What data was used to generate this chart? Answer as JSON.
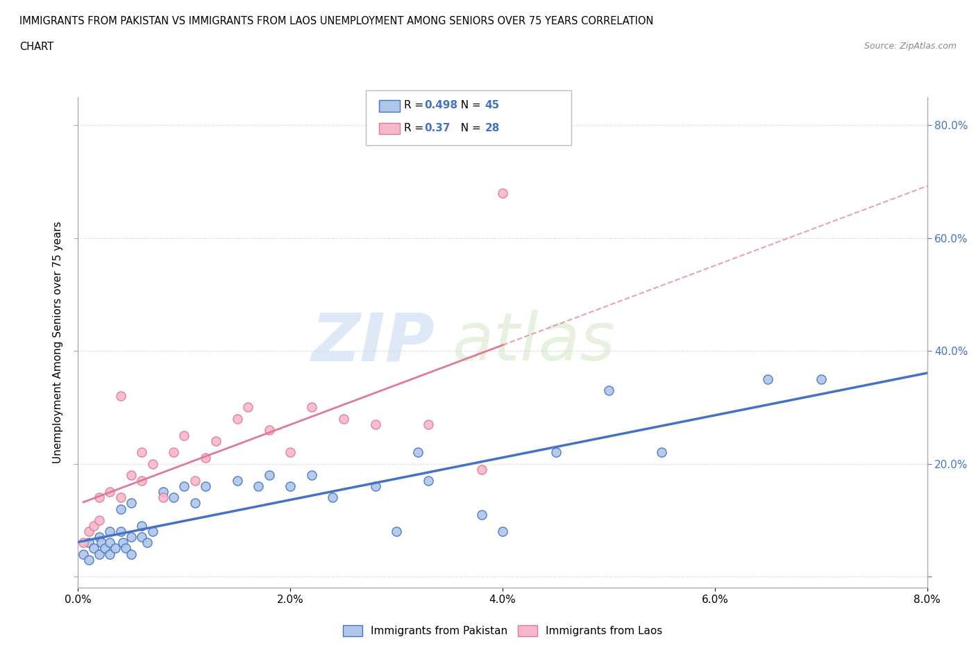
{
  "title_line1": "IMMIGRANTS FROM PAKISTAN VS IMMIGRANTS FROM LAOS UNEMPLOYMENT AMONG SENIORS OVER 75 YEARS CORRELATION",
  "title_line2": "CHART",
  "source_text": "Source: ZipAtlas.com",
  "ylabel": "Unemployment Among Seniors over 75 years",
  "legend_bottom": [
    "Immigrants from Pakistan",
    "Immigrants from Laos"
  ],
  "r_pakistan": 0.498,
  "n_pakistan": 45,
  "r_laos": 0.37,
  "n_laos": 28,
  "color_pakistan_face": "#aec6e8",
  "color_pakistan_edge": "#4472c4",
  "color_laos_face": "#f4b8c8",
  "color_laos_edge": "#e07898",
  "color_pakistan_line": "#4472c4",
  "color_laos_line": "#e07898",
  "color_label_right": "#4472c4",
  "background_color": "#ffffff",
  "grid_color": "#c8c8c8",
  "watermark_zip": "ZIP",
  "watermark_atlas": "atlas",
  "xlim": [
    0.0,
    0.08
  ],
  "ylim": [
    -0.02,
    0.85
  ],
  "xticks": [
    0.0,
    0.02,
    0.04,
    0.06,
    0.08
  ],
  "xtick_labels": [
    "0.0%",
    "2.0%",
    "4.0%",
    "6.0%",
    "8.0%"
  ],
  "ytick_positions": [
    0.0,
    0.2,
    0.4,
    0.6,
    0.8
  ],
  "ytick_labels_right": [
    "",
    "20.0%",
    "40.0%",
    "60.0%",
    "80.0%"
  ],
  "pakistan_x": [
    0.0005,
    0.001,
    0.001,
    0.0015,
    0.002,
    0.002,
    0.0022,
    0.0025,
    0.003,
    0.003,
    0.003,
    0.0035,
    0.004,
    0.004,
    0.0042,
    0.0045,
    0.005,
    0.005,
    0.005,
    0.006,
    0.006,
    0.0065,
    0.007,
    0.008,
    0.009,
    0.01,
    0.011,
    0.012,
    0.015,
    0.017,
    0.018,
    0.02,
    0.022,
    0.024,
    0.028,
    0.03,
    0.032,
    0.033,
    0.038,
    0.04,
    0.045,
    0.05,
    0.055,
    0.065,
    0.07
  ],
  "pakistan_y": [
    0.04,
    0.06,
    0.03,
    0.05,
    0.07,
    0.04,
    0.06,
    0.05,
    0.08,
    0.06,
    0.04,
    0.05,
    0.12,
    0.08,
    0.06,
    0.05,
    0.13,
    0.07,
    0.04,
    0.09,
    0.07,
    0.06,
    0.08,
    0.15,
    0.14,
    0.16,
    0.13,
    0.16,
    0.17,
    0.16,
    0.18,
    0.16,
    0.18,
    0.14,
    0.16,
    0.08,
    0.22,
    0.17,
    0.11,
    0.08,
    0.22,
    0.33,
    0.22,
    0.35,
    0.35
  ],
  "laos_x": [
    0.0005,
    0.001,
    0.0015,
    0.002,
    0.002,
    0.003,
    0.004,
    0.004,
    0.005,
    0.006,
    0.006,
    0.007,
    0.008,
    0.009,
    0.01,
    0.011,
    0.012,
    0.013,
    0.015,
    0.016,
    0.018,
    0.02,
    0.022,
    0.025,
    0.028,
    0.033,
    0.038,
    0.04
  ],
  "laos_y": [
    0.06,
    0.08,
    0.09,
    0.1,
    0.14,
    0.15,
    0.14,
    0.32,
    0.18,
    0.17,
    0.22,
    0.2,
    0.14,
    0.22,
    0.25,
    0.17,
    0.21,
    0.24,
    0.28,
    0.3,
    0.26,
    0.22,
    0.3,
    0.28,
    0.27,
    0.27,
    0.19,
    0.68
  ]
}
